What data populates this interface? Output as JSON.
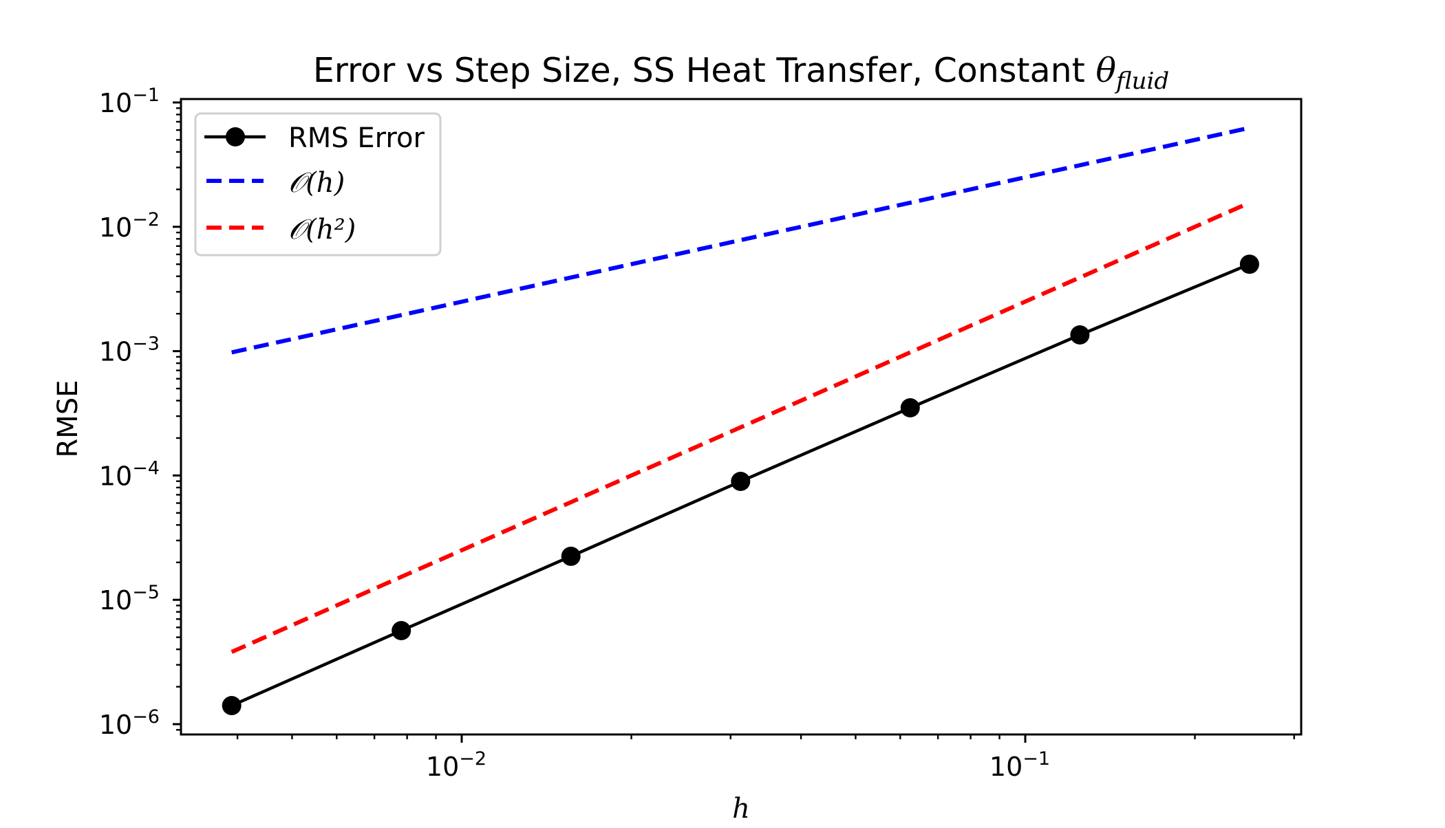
{
  "figure": {
    "title_main": "Error vs Step Size, SS Heat Transfer, Constant ",
    "title_symbol": "θ",
    "title_subscript": "fluid"
  },
  "axes": {
    "xlabel": "h",
    "ylabel": "RMSE",
    "xticks": [
      {
        "base": "10",
        "exp": "−2",
        "value": 0.01
      },
      {
        "base": "10",
        "exp": "−1",
        "value": 0.1
      }
    ],
    "yticks": [
      {
        "base": "10",
        "exp": "−1",
        "value": 0.1
      },
      {
        "base": "10",
        "exp": "−2",
        "value": 0.01
      },
      {
        "base": "10",
        "exp": "−3",
        "value": 0.001
      },
      {
        "base": "10",
        "exp": "−4",
        "value": 0.0001
      },
      {
        "base": "10",
        "exp": "−5",
        "value": 1e-05
      },
      {
        "base": "10",
        "exp": "−6",
        "value": 1e-06
      }
    ]
  },
  "legend": {
    "items": [
      {
        "label": "RMS Error",
        "color": "#000000",
        "style": "solid-marker"
      },
      {
        "label": "𝒪(h)",
        "color": "#0000ff",
        "style": "dashed"
      },
      {
        "label": "𝒪(h²)",
        "color": "#ff0000",
        "style": "dashed"
      }
    ]
  },
  "colors": {
    "rms": "#000000",
    "order1": "#0000ff",
    "order2": "#ff0000",
    "legend_border": "#d0d0d0"
  },
  "chart_data": {
    "type": "line",
    "title": "Error vs Step Size, SS Heat Transfer, Constant θ_fluid",
    "xlabel": "h",
    "ylabel": "RMSE",
    "xscale": "log",
    "yscale": "log",
    "xlim": [
      0.00318,
      0.309
    ],
    "ylim": [
      8.4e-07,
      0.107
    ],
    "grid": false,
    "legend_position": "upper left",
    "x": [
      0.00390625,
      0.0078125,
      0.015625,
      0.03125,
      0.0625,
      0.125,
      0.25
    ],
    "series": [
      {
        "name": "RMS Error",
        "color": "#000000",
        "linestyle": "solid",
        "marker": "circle",
        "values": [
          1.41e-06,
          5.65e-06,
          2.24e-05,
          8.96e-05,
          0.00035,
          0.00135,
          0.005
        ]
      },
      {
        "name": "O(h)",
        "color": "#0000ff",
        "linestyle": "dashed",
        "marker": "none",
        "values": [
          0.000977,
          0.00195,
          0.00391,
          0.00781,
          0.015625,
          0.03125,
          0.0625
        ]
      },
      {
        "name": "O(h^2)",
        "color": "#ff0000",
        "linestyle": "dashed",
        "marker": "none",
        "values": [
          3.81e-06,
          1.53e-05,
          6.1e-05,
          0.000244,
          0.000977,
          0.00391,
          0.015625
        ]
      }
    ],
    "xticks_labels": [
      "10^-2",
      "10^-1"
    ],
    "yticks_labels": [
      "10^-6",
      "10^-5",
      "10^-4",
      "10^-3",
      "10^-2",
      "10^-1"
    ]
  }
}
